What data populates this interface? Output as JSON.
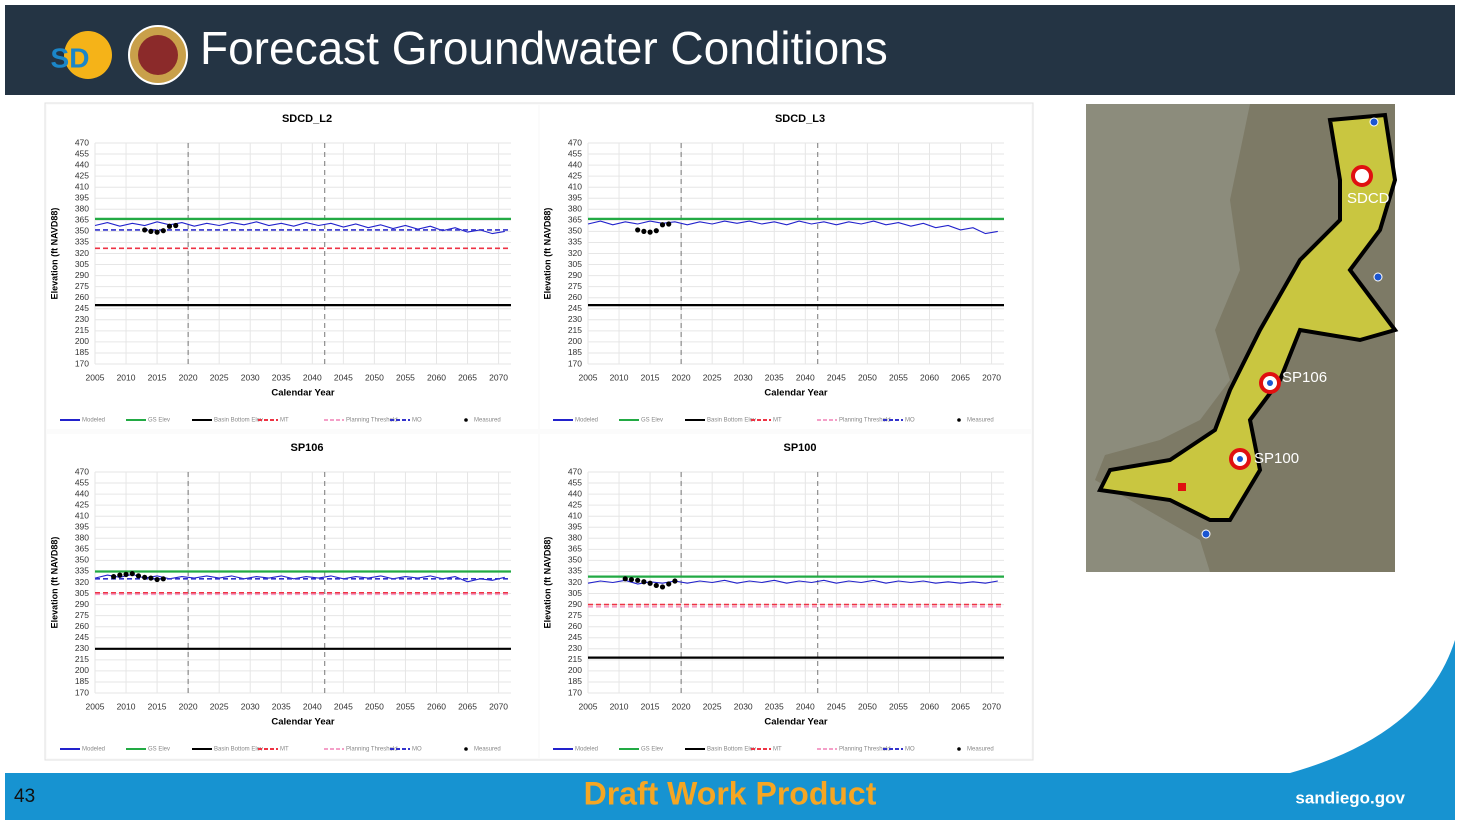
{
  "header": {
    "logo_text": "SD",
    "title": "Forecast Groundwater Conditions"
  },
  "footer": {
    "page": "43",
    "center": "Draft Work Product",
    "right": "sandiego.gov"
  },
  "map": {
    "labels": [
      "SDCD",
      "SP106",
      "SP100"
    ]
  },
  "chart_data": [
    {
      "type": "line",
      "title": "SDCD_L2",
      "xlabel": "Calendar Year",
      "ylabel": "Elevation (ft NAVD88)",
      "xlim": [
        2005,
        2072
      ],
      "ylim": [
        170,
        470
      ],
      "xticks": [
        2005,
        2010,
        2015,
        2020,
        2025,
        2030,
        2035,
        2040,
        2045,
        2050,
        2055,
        2060,
        2065,
        2070
      ],
      "yticks": [
        170,
        185,
        200,
        215,
        230,
        245,
        260,
        275,
        290,
        305,
        320,
        335,
        350,
        365,
        380,
        395,
        410,
        425,
        440,
        455,
        470
      ],
      "grid": true,
      "vlines": [
        2020,
        2042
      ],
      "series": [
        {
          "name": "Modeled",
          "color": "#2222cc",
          "x": [
            2005,
            2007,
            2009,
            2011,
            2013,
            2015,
            2017,
            2019,
            2021,
            2023,
            2025,
            2027,
            2029,
            2031,
            2033,
            2035,
            2037,
            2039,
            2041,
            2043,
            2045,
            2047,
            2049,
            2051,
            2053,
            2055,
            2057,
            2059,
            2061,
            2063,
            2065,
            2067,
            2069,
            2071
          ],
          "values": [
            358,
            362,
            357,
            361,
            358,
            363,
            359,
            362,
            357,
            361,
            358,
            362,
            359,
            363,
            358,
            361,
            357,
            362,
            358,
            361,
            356,
            360,
            355,
            359,
            354,
            358,
            353,
            357,
            351,
            355,
            349,
            352,
            347,
            350
          ]
        },
        {
          "name": "GS Elev",
          "color": "#22aa44",
          "x": [
            2005,
            2072
          ],
          "values": [
            367,
            367
          ]
        },
        {
          "name": "Basin Bottom Elev",
          "color": "#000000",
          "x": [
            2005,
            2072
          ],
          "values": [
            250,
            250
          ]
        },
        {
          "name": "MT",
          "color": "#ee3344",
          "dash": true,
          "x": [
            2005,
            2072
          ],
          "values": [
            327,
            327
          ]
        },
        {
          "name": "Planning Threshold",
          "color": "#f4a0c8",
          "dash": true,
          "x": [
            2005,
            2072
          ],
          "values": [
            null,
            null
          ]
        },
        {
          "name": "MO",
          "color": "#3333cc",
          "dash": true,
          "x": [
            2005,
            2072
          ],
          "values": [
            352,
            352
          ]
        },
        {
          "name": "Measured",
          "color": "#000000",
          "marker": true,
          "x": [
            2013,
            2014,
            2015,
            2016,
            2017,
            2018
          ],
          "values": [
            352,
            350,
            349,
            351,
            357,
            358
          ]
        }
      ]
    },
    {
      "type": "line",
      "title": "SDCD_L3",
      "xlabel": "Calendar Year",
      "ylabel": "Elevation (ft NAVD88)",
      "xlim": [
        2005,
        2072
      ],
      "ylim": [
        170,
        470
      ],
      "xticks": [
        2005,
        2010,
        2015,
        2020,
        2025,
        2030,
        2035,
        2040,
        2045,
        2050,
        2055,
        2060,
        2065,
        2070
      ],
      "yticks": [
        170,
        185,
        200,
        215,
        230,
        245,
        260,
        275,
        290,
        305,
        320,
        335,
        350,
        365,
        380,
        395,
        410,
        425,
        440,
        455,
        470
      ],
      "grid": true,
      "vlines": [
        2020,
        2042
      ],
      "series": [
        {
          "name": "Modeled",
          "color": "#2222cc",
          "x": [
            2005,
            2007,
            2009,
            2011,
            2013,
            2015,
            2017,
            2019,
            2021,
            2023,
            2025,
            2027,
            2029,
            2031,
            2033,
            2035,
            2037,
            2039,
            2041,
            2043,
            2045,
            2047,
            2049,
            2051,
            2053,
            2055,
            2057,
            2059,
            2061,
            2063,
            2065,
            2067,
            2069,
            2071
          ],
          "values": [
            360,
            364,
            359,
            363,
            360,
            364,
            361,
            363,
            359,
            363,
            360,
            364,
            361,
            364,
            360,
            363,
            359,
            364,
            360,
            363,
            359,
            363,
            360,
            364,
            359,
            362,
            357,
            361,
            355,
            358,
            352,
            355,
            347,
            350
          ]
        },
        {
          "name": "GS Elev",
          "color": "#22aa44",
          "x": [
            2005,
            2072
          ],
          "values": [
            367,
            367
          ]
        },
        {
          "name": "Basin Bottom Elev",
          "color": "#000000",
          "x": [
            2005,
            2072
          ],
          "values": [
            250,
            250
          ]
        },
        {
          "name": "MT",
          "color": "#ee3344",
          "dash": true,
          "x": [
            2005,
            2072
          ],
          "values": [
            null,
            null
          ]
        },
        {
          "name": "Planning Threshold",
          "color": "#f4a0c8",
          "dash": true,
          "x": [
            2005,
            2072
          ],
          "values": [
            null,
            null
          ]
        },
        {
          "name": "MO",
          "color": "#3333cc",
          "dash": true,
          "x": [
            2005,
            2072
          ],
          "values": [
            null,
            null
          ]
        },
        {
          "name": "Measured",
          "color": "#000000",
          "marker": true,
          "x": [
            2013,
            2014,
            2015,
            2016,
            2017,
            2018
          ],
          "values": [
            352,
            350,
            349,
            351,
            359,
            360
          ]
        }
      ]
    },
    {
      "type": "line",
      "title": "SP106",
      "xlabel": "Calendar Year",
      "ylabel": "Elevation (ft NAVD88)",
      "xlim": [
        2005,
        2072
      ],
      "ylim": [
        170,
        470
      ],
      "xticks": [
        2005,
        2010,
        2015,
        2020,
        2025,
        2030,
        2035,
        2040,
        2045,
        2050,
        2055,
        2060,
        2065,
        2070
      ],
      "yticks": [
        170,
        185,
        200,
        215,
        230,
        245,
        260,
        275,
        290,
        305,
        320,
        335,
        350,
        365,
        380,
        395,
        410,
        425,
        440,
        455,
        470
      ],
      "grid": true,
      "vlines": [
        2020,
        2042
      ],
      "series": [
        {
          "name": "Modeled",
          "color": "#2222cc",
          "x": [
            2005,
            2007,
            2009,
            2011,
            2013,
            2015,
            2017,
            2019,
            2021,
            2023,
            2025,
            2027,
            2029,
            2031,
            2033,
            2035,
            2037,
            2039,
            2041,
            2043,
            2045,
            2047,
            2049,
            2051,
            2053,
            2055,
            2057,
            2059,
            2061,
            2063,
            2065,
            2067,
            2069,
            2071
          ],
          "values": [
            326,
            330,
            327,
            331,
            326,
            329,
            325,
            328,
            326,
            329,
            326,
            329,
            325,
            328,
            326,
            329,
            325,
            328,
            326,
            329,
            325,
            328,
            326,
            329,
            325,
            328,
            326,
            329,
            325,
            328,
            321,
            325,
            323,
            327
          ]
        },
        {
          "name": "GS Elev",
          "color": "#22aa44",
          "x": [
            2005,
            2072
          ],
          "values": [
            335,
            335
          ]
        },
        {
          "name": "Basin Bottom Elev",
          "color": "#000000",
          "x": [
            2005,
            2072
          ],
          "values": [
            230,
            230
          ]
        },
        {
          "name": "MT",
          "color": "#ee3344",
          "dash": true,
          "x": [
            2005,
            2072
          ],
          "values": [
            306,
            306
          ]
        },
        {
          "name": "Planning Threshold",
          "color": "#f4a0c8",
          "dash": true,
          "x": [
            2005,
            2072
          ],
          "values": [
            304,
            304
          ]
        },
        {
          "name": "MO",
          "color": "#3333cc",
          "dash": true,
          "x": [
            2005,
            2072
          ],
          "values": [
            325,
            325
          ]
        },
        {
          "name": "Measured",
          "color": "#000000",
          "marker": true,
          "x": [
            2008,
            2009,
            2010,
            2011,
            2012,
            2013,
            2014,
            2015,
            2016
          ],
          "values": [
            328,
            330,
            331,
            332,
            329,
            327,
            326,
            324,
            325
          ]
        }
      ]
    },
    {
      "type": "line",
      "title": "SP100",
      "xlabel": "Calendar Year",
      "ylabel": "Elevation (ft NAVD88)",
      "xlim": [
        2005,
        2072
      ],
      "ylim": [
        170,
        470
      ],
      "xticks": [
        2005,
        2010,
        2015,
        2020,
        2025,
        2030,
        2035,
        2040,
        2045,
        2050,
        2055,
        2060,
        2065,
        2070
      ],
      "yticks": [
        170,
        185,
        200,
        215,
        230,
        245,
        260,
        275,
        290,
        305,
        320,
        335,
        350,
        365,
        380,
        395,
        410,
        425,
        440,
        455,
        470
      ],
      "grid": true,
      "vlines": [
        2020,
        2042
      ],
      "series": [
        {
          "name": "Modeled",
          "color": "#2222cc",
          "x": [
            2005,
            2007,
            2009,
            2011,
            2013,
            2015,
            2017,
            2019,
            2021,
            2023,
            2025,
            2027,
            2029,
            2031,
            2033,
            2035,
            2037,
            2039,
            2041,
            2043,
            2045,
            2047,
            2049,
            2051,
            2053,
            2055,
            2057,
            2059,
            2061,
            2063,
            2065,
            2067,
            2069,
            2071
          ],
          "values": [
            319,
            322,
            320,
            323,
            318,
            321,
            319,
            322,
            319,
            322,
            320,
            323,
            319,
            322,
            320,
            323,
            319,
            322,
            320,
            323,
            319,
            322,
            320,
            323,
            319,
            322,
            320,
            322,
            319,
            321,
            319,
            321,
            319,
            322
          ]
        },
        {
          "name": "GS Elev",
          "color": "#22aa44",
          "x": [
            2005,
            2072
          ],
          "values": [
            328,
            328
          ]
        },
        {
          "name": "Basin Bottom Elev",
          "color": "#000000",
          "x": [
            2005,
            2072
          ],
          "values": [
            218,
            218
          ]
        },
        {
          "name": "MT",
          "color": "#ee3344",
          "dash": true,
          "x": [
            2005,
            2072
          ],
          "values": [
            290,
            290
          ]
        },
        {
          "name": "Planning Threshold",
          "color": "#f4a0c8",
          "dash": true,
          "x": [
            2005,
            2072
          ],
          "values": [
            287,
            287
          ]
        },
        {
          "name": "MO",
          "color": "#3333cc",
          "dash": true,
          "x": [
            2005,
            2072
          ],
          "values": [
            null,
            null
          ]
        },
        {
          "name": "Measured",
          "color": "#000000",
          "marker": true,
          "x": [
            2011,
            2012,
            2013,
            2014,
            2015,
            2016,
            2017,
            2018,
            2019
          ],
          "values": [
            325,
            324,
            323,
            321,
            319,
            316,
            314,
            318,
            322
          ]
        }
      ]
    }
  ]
}
